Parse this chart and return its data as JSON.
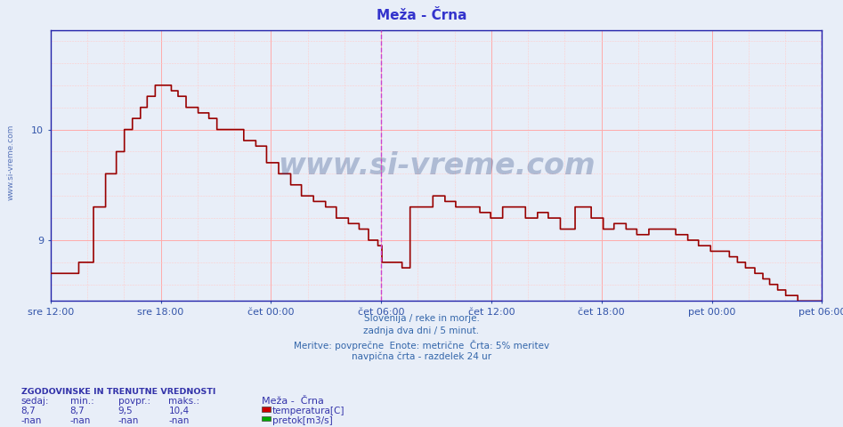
{
  "title": "Meža - Črna",
  "title_color": "#3333cc",
  "bg_color": "#e8eef8",
  "plot_bg_color": "#e8eef8",
  "line_color": "#990000",
  "ylim": [
    8.45,
    10.9
  ],
  "ytick_vals": [
    9,
    10
  ],
  "xlabels": [
    "sre 12:00",
    "sre 18:00",
    "čet 00:00",
    "čet 06:00",
    "čet 12:00",
    "čet 18:00",
    "pet 00:00",
    "pet 06:00"
  ],
  "tick_color": "#3355aa",
  "vline_color": "#cc44cc",
  "grid_major_color": "#ffaaaa",
  "grid_minor_color": "#ffcccc",
  "watermark": "www.si-vreme.com",
  "watermark_color": "#1a3a7a",
  "footer_lines": [
    "Slovenija / reke in morje.",
    "zadnja dva dni / 5 minut.",
    "Meritve: povprečne  Enote: metrične  Črta: 5% meritev",
    "navpična črta - razdelek 24 ur"
  ],
  "footer_color": "#3366aa",
  "legend_title": "Meža -  Črna",
  "legend_entries": [
    "temperatura[C]",
    "pretok[m3/s]"
  ],
  "legend_colors": [
    "#cc0000",
    "#00aa00"
  ],
  "stats_label": "ZGODOVINSKE IN TRENUTNE VREDNOSTI",
  "stats_headers": [
    "sedaj:",
    "min.:",
    "povpr.:",
    "maks.:"
  ],
  "stats_row1": [
    "8,7",
    "8,7",
    "9,5",
    "10,4"
  ],
  "stats_row2": [
    "-nan",
    "-nan",
    "-nan",
    "-nan"
  ],
  "stats_color": "#3333aa",
  "side_text": "www.si-vreme.com",
  "side_text_color": "#3355aa"
}
